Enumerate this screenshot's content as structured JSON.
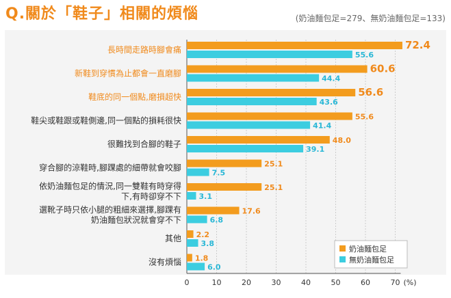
{
  "title": "Q.關於「鞋子」相關的煩惱",
  "subtitle": "(奶油麵包足=279、無奶油麵包足=133)",
  "colors": {
    "series_a": "#f39c1e",
    "series_b": "#3ccde0",
    "highlight_text": "#f08a1c",
    "label_a": "#f08a1c",
    "label_b": "#29b7d6",
    "panel_bg": "#f4f4f4",
    "grid": "#cccccc"
  },
  "chart_data": {
    "type": "bar",
    "orientation": "horizontal",
    "title": "Q.關於「鞋子」相關的煩惱",
    "subtitle": "(奶油麵包足=279、無奶油麵包足=133)",
    "categories": [
      [
        "長時間走路時腳會痛"
      ],
      [
        "新鞋到穿慣為止都會一直磨腳"
      ],
      [
        "鞋底的同一個點,磨損超快"
      ],
      [
        "鞋尖或鞋跟或鞋側邊,同一個點的損耗很快"
      ],
      [
        "很難找到合腳的鞋子"
      ],
      [
        "穿合腳的涼鞋時,腳踝處的細帶就會咬腳"
      ],
      [
        "依奶油麵包足的情況,同一雙鞋有時穿得",
        "下,有時卻穿不下"
      ],
      [
        "選靴子時只依小腿的粗細來選擇,腳踝有",
        "奶油麵包狀況就會穿不下"
      ],
      [
        "其他"
      ],
      [
        "沒有煩惱"
      ]
    ],
    "highlighted_categories": [
      0,
      1,
      2
    ],
    "series": [
      {
        "name": "奶油麵包足",
        "values": [
          72.4,
          60.6,
          56.6,
          55.6,
          48.0,
          25.1,
          25.1,
          17.6,
          2.2,
          1.8
        ]
      },
      {
        "name": "無奶油麵包足",
        "values": [
          55.6,
          44.4,
          43.6,
          41.4,
          39.1,
          7.5,
          3.1,
          6.8,
          3.8,
          6.0
        ]
      }
    ],
    "value_labels": {
      "a": [
        "72.4",
        "60.6",
        "56.6",
        "55.6",
        "48.0",
        "25.1",
        "25.1",
        "17.6",
        "2.2",
        "1.8"
      ],
      "b": [
        "55.6",
        "44.4",
        "43.6",
        "41.4",
        "39.1",
        "7.5",
        "3.1",
        "6.8",
        "3.8",
        "6.0"
      ]
    },
    "emphasized_values": [
      0,
      1,
      2
    ],
    "x_ticks": [
      "0",
      "10",
      "20",
      "30",
      "40",
      "50",
      "60",
      "70"
    ],
    "x_unit": "(%)",
    "xlim": [
      0,
      70
    ],
    "legend": {
      "position": "bottom-right",
      "entries": [
        "奶油麵包足",
        "無奶油麵包足"
      ]
    },
    "grid": true
  }
}
